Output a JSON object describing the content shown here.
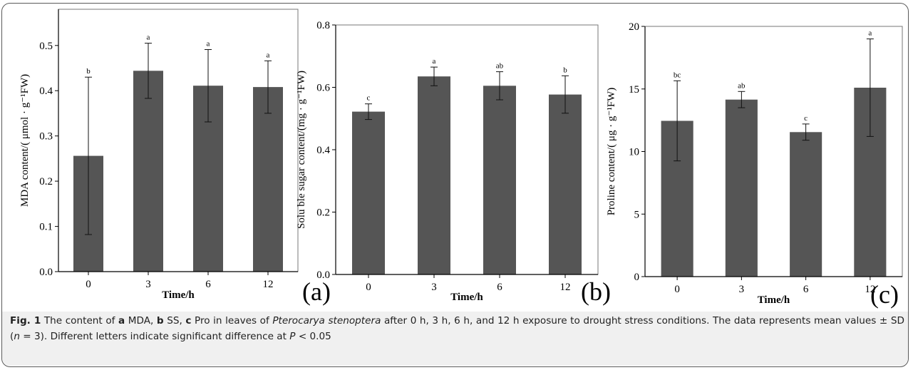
{
  "caption": {
    "fig_label": "Fig. 1",
    "t1": " The content of ",
    "a": "a",
    "t2": " MDA, ",
    "b": "b",
    "t3": " SS, ",
    "c": "c",
    "t4": " Pro in leaves of ",
    "species": "Pterocarya stenoptera",
    "t5": " after 0 h, 3 h, 6 h, and 12 h exposure to drought stress conditions. The data represents mean values ± SD (",
    "n": "n",
    "t6": " = 3). Different letters indicate significant difference at ",
    "p": "P",
    "t7": " < 0.05"
  },
  "chart_data": [
    {
      "type": "bar",
      "panel": "(a)",
      "categories": [
        "0",
        "3",
        "6",
        "12"
      ],
      "values": [
        0.256,
        0.444,
        0.411,
        0.408
      ],
      "errors": [
        0.174,
        0.061,
        0.08,
        0.058
      ],
      "significance": [
        "b",
        "a",
        "a",
        "a"
      ],
      "xlabel": "Time/h",
      "ylabel": "MDA content/( μmol · g⁻¹FW)",
      "ylim": [
        0.0,
        0.58
      ],
      "yticks": [
        0.0,
        0.1,
        0.2,
        0.3,
        0.4,
        0.5
      ],
      "ytick_labels": [
        "0.0",
        "0.1",
        "0.2",
        "0.3",
        "0.4",
        "0.5"
      ],
      "bar_color": "#555555"
    },
    {
      "type": "bar",
      "panel": "(b)",
      "categories": [
        "0",
        "3",
        "6",
        "12"
      ],
      "values": [
        0.522,
        0.635,
        0.605,
        0.577
      ],
      "errors": [
        0.025,
        0.03,
        0.045,
        0.06
      ],
      "significance": [
        "c",
        "a",
        "ab",
        "b"
      ],
      "xlabel": "Time/h",
      "ylabel": "Solu ble sugar content/(mg · g⁻¹FW)",
      "ylim": [
        0.0,
        0.8
      ],
      "yticks": [
        0.0,
        0.2,
        0.4,
        0.6,
        0.8
      ],
      "ytick_labels": [
        "0.0",
        "0.2",
        "0.4",
        "0.6",
        "0.8"
      ],
      "bar_color": "#555555"
    },
    {
      "type": "bar",
      "panel": "(c)",
      "categories": [
        "0",
        "3",
        "6",
        "12"
      ],
      "values": [
        12.45,
        14.15,
        11.55,
        15.1
      ],
      "errors": [
        3.2,
        0.65,
        0.65,
        3.9
      ],
      "significance": [
        "bc",
        "ab",
        "c",
        "a"
      ],
      "xlabel": "Time/h",
      "ylabel": "Proline content/( μg · g⁻¹FW)",
      "ylim": [
        0,
        20
      ],
      "yticks": [
        0,
        5,
        10,
        15,
        20
      ],
      "ytick_labels": [
        "0",
        "5",
        "10",
        "15",
        "20"
      ],
      "bar_color": "#555555"
    }
  ]
}
